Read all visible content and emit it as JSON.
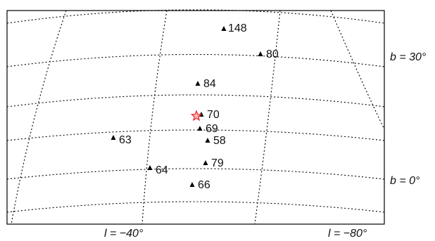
{
  "map": {
    "axis_labels": {
      "b30": "b = 30°",
      "b0": "b = 0°",
      "l40": "l = −40°",
      "l80": "l = −80°"
    },
    "points": [
      {
        "id": "148",
        "label": "148"
      },
      {
        "id": "80",
        "label": "80"
      },
      {
        "id": "84",
        "label": "84"
      },
      {
        "id": "70",
        "label": "70"
      },
      {
        "id": "69",
        "label": "69"
      },
      {
        "id": "58",
        "label": "58"
      },
      {
        "id": "63",
        "label": "63"
      },
      {
        "id": "79",
        "label": "79"
      },
      {
        "id": "64",
        "label": "64"
      },
      {
        "id": "66",
        "label": "66"
      }
    ],
    "star_color": "#e8202a",
    "marker_color": "#000000"
  }
}
